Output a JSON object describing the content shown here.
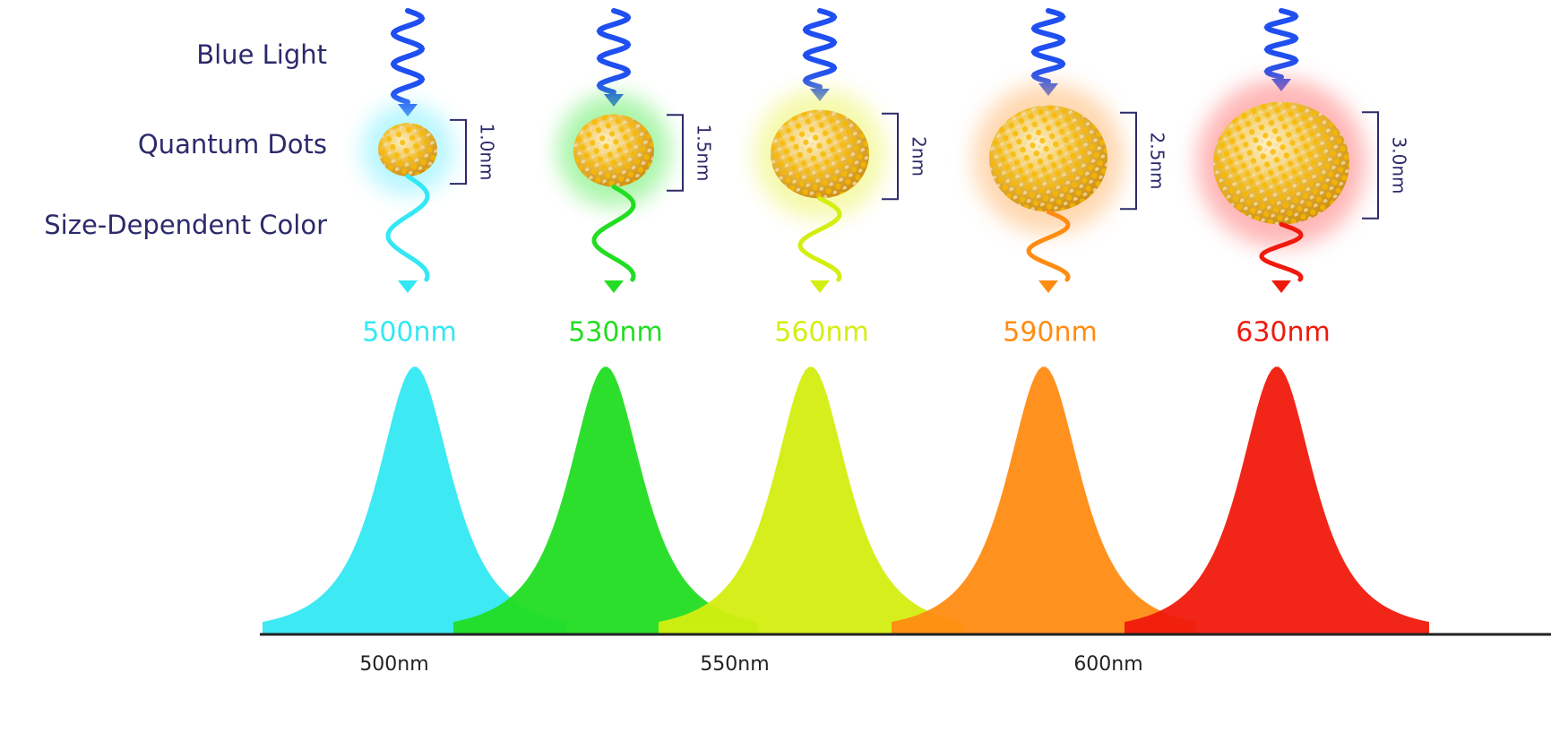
{
  "row_labels": [
    "Blue Light",
    "Quantum Dots",
    "Size-Dependent Color"
  ],
  "dots": [
    {
      "size": "1.0nm",
      "wavelength": "500nm"
    },
    {
      "size": "1.5nm",
      "wavelength": "530nm"
    },
    {
      "size": "2nm",
      "wavelength": "560nm"
    },
    {
      "size": "2.5nm",
      "wavelength": "590nm"
    },
    {
      "size": "3.0nm",
      "wavelength": "630nm"
    }
  ],
  "axis": {
    "tick_labels": [
      "500nm",
      "550nm",
      "600nm"
    ]
  }
}
